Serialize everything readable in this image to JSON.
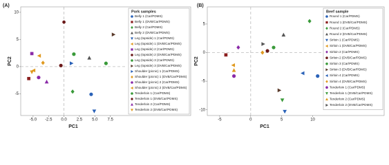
{
  "chart_data": [
    {
      "type": "scatter",
      "panel_label": "(A)",
      "xlabel": "PC1",
      "ylabel": "PC2",
      "legend_title": "Pork samples",
      "xlim": [
        -7,
        10
      ],
      "ylim": [
        -9,
        11
      ],
      "xticks": [
        {
          "value": -5,
          "label": "-5.0"
        },
        {
          "value": -2.5,
          "label": "-2.5"
        },
        {
          "value": 0,
          "label": "0.0"
        },
        {
          "value": 2.5,
          "label": "2.5"
        },
        {
          "value": 5,
          "label": "5.0"
        },
        {
          "value": 7.5,
          "label": "7.5"
        }
      ],
      "yticks": [
        -5,
        0,
        5,
        10
      ],
      "zero_lines": true,
      "series": [
        {
          "name": "Belly 1 (Car/PDMS)",
          "color": "#2a62b8",
          "marker": "circle",
          "x": [
            4.4
          ],
          "values": [
            -5.1
          ]
        },
        {
          "name": "Belly 1 (DVB/Car/PDMS)",
          "color": "#8b1e1e",
          "marker": "square",
          "x": [
            -5.7
          ],
          "values": [
            -2.2
          ]
        },
        {
          "name": "Belly 2 (Car/PDMS)",
          "color": "#3a9a3a",
          "marker": "diamond",
          "x": [
            1.4
          ],
          "values": [
            -4.6
          ]
        },
        {
          "name": "Belly 2 (DVB/Car/PDMS)",
          "color": "#555555",
          "marker": "triangle-up",
          "x": [
            4.1
          ],
          "values": [
            1.6
          ]
        },
        {
          "name": "Leg (topside) 1 (Car/PDMS)",
          "color": "#2a62b8",
          "marker": "triangle-down",
          "x": [
            4.9
          ],
          "values": [
            -8.2
          ]
        },
        {
          "name": "Leg (topside) 1 (DVB/Car/PDMS)",
          "color": "#e09a20",
          "marker": "triangle-left",
          "x": [
            -4.0
          ],
          "values": [
            2.0
          ]
        },
        {
          "name": "Leg (topside) 2 (Car/PDMS)",
          "color": "#8a2aa8",
          "marker": "square",
          "x": [
            -5.2
          ],
          "values": [
            2.4
          ]
        },
        {
          "name": "Leg (topside) 2 (DVB/Car/PDMS)",
          "color": "#6b1a1a",
          "marker": "circle",
          "x": [
            -0.5
          ],
          "values": [
            0.2
          ]
        },
        {
          "name": "Leg (topside) 3 (Car/PDMS)",
          "color": "#3a9a3a",
          "marker": "circle",
          "x": [
            1.6
          ],
          "values": [
            2.3
          ]
        },
        {
          "name": "Leg (topside) 3 (DVB/Car/PDMS)",
          "color": "#5a3a2a",
          "marker": "triangle-right",
          "x": [
            8.0
          ],
          "values": [
            5.9
          ]
        },
        {
          "name": "Shoulder (picnic) 1 (Car/PDMS)",
          "color": "#2a62b8",
          "marker": "triangle-right",
          "x": [
            1.2
          ],
          "values": [
            0.6
          ]
        },
        {
          "name": "Shoulder (picnic) 1 (DVB/Car/PDMS)",
          "color": "#e09a20",
          "marker": "diamond",
          "x": [
            -3.4
          ],
          "values": [
            0.7
          ]
        },
        {
          "name": "Shoulder (picnic) 2 (Car/PDMS)",
          "color": "#8a2aa8",
          "marker": "circle",
          "x": [
            -4.1
          ],
          "values": [
            -2.0
          ]
        },
        {
          "name": "Shoulder (picnic) 2 (DVB/Car/PDMS)",
          "color": "#e09a20",
          "marker": "triangle-left",
          "x": [
            -4.9
          ],
          "values": [
            -0.7
          ]
        },
        {
          "name": "Tenderloin 1 (Car/PDMS)",
          "color": "#3a9a3a",
          "marker": "circle",
          "x": [
            6.8
          ],
          "values": [
            0.6
          ]
        },
        {
          "name": "Tenderloin 1 (DVB/Car/PDMS)",
          "color": "#6b1a1a",
          "marker": "hexagon",
          "x": [
            0.0
          ],
          "values": [
            8.2
          ]
        },
        {
          "name": "Tenderloin 2 (Car/PDMS)",
          "color": "#8a2aa8",
          "marker": "triangle-up",
          "x": [
            -2.8
          ],
          "values": [
            -2.8
          ]
        },
        {
          "name": "Tenderloin 2 (DVB/Car/PDMS)",
          "color": "#e09a20",
          "marker": "triangle-down",
          "x": [
            -5.2
          ],
          "values": [
            -1.0
          ]
        }
      ]
    },
    {
      "type": "scatter",
      "panel_label": "(B)",
      "xlabel": "PC1",
      "ylabel": "PC2",
      "legend_title": "Beef sample",
      "xlim": [
        -7,
        11.5
      ],
      "ylim": [
        -11,
        8
      ],
      "xticks": [
        -5,
        0,
        5,
        10
      ],
      "yticks": [
        -10,
        -5,
        0,
        5
      ],
      "zero_lines": true,
      "series": [
        {
          "name": "Round 1 (Car/PDMS)",
          "color": "#2a62b8",
          "marker": "circle",
          "x": [
            10.8
          ],
          "values": [
            -4.1
          ]
        },
        {
          "name": "Round 1 (DVB/Car/PDMS)",
          "color": "#8b1e1e",
          "marker": "square",
          "x": [
            -4.0
          ],
          "values": [
            -0.4
          ]
        },
        {
          "name": "Round 2 (Car/PDMS)",
          "color": "#3a9a3a",
          "marker": "diamond",
          "x": [
            9.5
          ],
          "values": [
            5.5
          ]
        },
        {
          "name": "Round 2 (DVB/Car/PDMS)",
          "color": "#555555",
          "marker": "triangle-up",
          "x": [
            5.3
          ],
          "values": [
            3.1
          ]
        },
        {
          "name": "Sirloin 1 (Car/PDMS)",
          "color": "#2a62b8",
          "marker": "triangle-down",
          "x": [
            5.5
          ],
          "values": [
            -10.3
          ]
        },
        {
          "name": "Sirloin 1 (DVB/Car/PDMS)",
          "color": "#e09a20",
          "marker": "triangle-left",
          "x": [
            -2.8
          ],
          "values": [
            -2.2
          ]
        },
        {
          "name": "Sirloin 2 (Car/PDMS)",
          "color": "#8a2aa8",
          "marker": "diamond",
          "x": [
            -2.0
          ],
          "values": [
            0.9
          ]
        },
        {
          "name": "Sirloin 2 (DVB/Car/PDMS)",
          "color": "#6b1a1a",
          "marker": "circle",
          "x": [
            2.7
          ],
          "values": [
            0.3
          ]
        },
        {
          "name": "Sirloin 3 (Car/PDMS)",
          "color": "#3a9a3a",
          "marker": "circle",
          "x": [
            3.7
          ],
          "values": [
            0.9
          ]
        },
        {
          "name": "Sirloin 3 (DVB/Car/PDMS)",
          "color": "#5a3a2a",
          "marker": "triangle-right",
          "x": [
            4.6
          ],
          "values": [
            -6.6
          ]
        },
        {
          "name": "Sirloin 4 (Car/PDMS)",
          "color": "#2a62b8",
          "marker": "triangle-left",
          "x": [
            8.4
          ],
          "values": [
            -3.6
          ]
        },
        {
          "name": "Sirloin 4 (DVB/Car/PDMS)",
          "color": "#e09a20",
          "marker": "diamond",
          "x": [
            1.9
          ],
          "values": [
            0.0
          ]
        },
        {
          "name": "Tenderloin 1 (Car/PDMS)",
          "color": "#8a2aa8",
          "marker": "circle",
          "x": [
            -2.7
          ],
          "values": [
            -4.1
          ]
        },
        {
          "name": "Tenderloin 1 (DVB/Car/PDMS)",
          "color": "#3a9a3a",
          "marker": "triangle-down",
          "x": [
            5.1
          ],
          "values": [
            -8.3
          ]
        },
        {
          "name": "Tenderloin 2 (Car/PDMS)",
          "color": "#e09a20",
          "marker": "triangle-up",
          "x": [
            -2.7
          ],
          "values": [
            -3.1
          ]
        },
        {
          "name": "Tenderloin 2 (DVB/Car/PDMS)",
          "color": "#555555",
          "marker": "triangle-right",
          "x": [
            2.0
          ],
          "values": [
            1.5
          ]
        }
      ]
    }
  ]
}
